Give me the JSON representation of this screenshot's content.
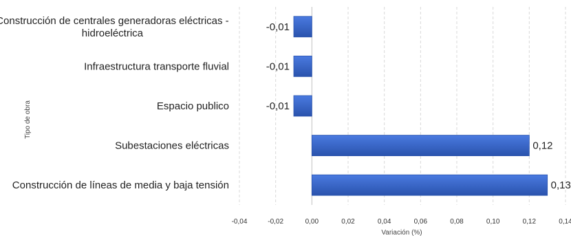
{
  "chart_data": {
    "type": "bar",
    "orientation": "horizontal",
    "categories": [
      [
        "Construcción de centrales generadoras eléctricas -",
        "hidroeléctrica"
      ],
      [
        "Infraestructura transporte fluvial"
      ],
      [
        "Espacio publico"
      ],
      [
        "Subestaciones eléctricas"
      ],
      [
        "Construcción de líneas de media y baja tensión"
      ]
    ],
    "values": [
      -0.01,
      -0.01,
      -0.01,
      0.12,
      0.13
    ],
    "value_labels": [
      "-0,01",
      "-0,01",
      "-0,01",
      "0,12",
      "0,13"
    ],
    "xlabel": "Variación (%)",
    "ylabel": "Tipo de obra",
    "xlim": [
      -0.04,
      0.14
    ],
    "xticks": [
      -0.04,
      -0.02,
      0.0,
      0.02,
      0.04,
      0.06,
      0.08,
      0.1,
      0.12,
      0.14
    ],
    "xtick_labels": [
      "-0,04",
      "-0,02",
      "0,00",
      "0,02",
      "0,04",
      "0,06",
      "0,08",
      "0,10",
      "0,12",
      "0,14"
    ],
    "grid": true,
    "legend": false,
    "bar_color": "#3f6fd1",
    "bar_color_dark": "#2a53ad"
  }
}
